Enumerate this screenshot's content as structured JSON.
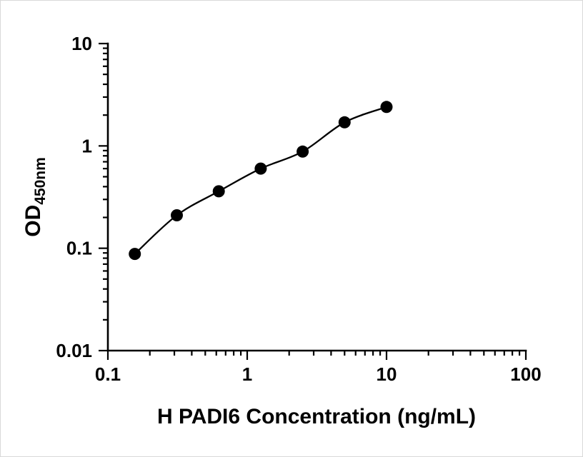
{
  "chart_data": {
    "type": "scatter",
    "title": "",
    "xlabel": "H PADI6 Concentration (ng/mL)",
    "ylabel_main": "OD",
    "ylabel_sub": "450nm",
    "x": [
      0.156,
      0.3125,
      0.625,
      1.25,
      2.5,
      5,
      10
    ],
    "y": [
      0.088,
      0.21,
      0.36,
      0.6,
      0.88,
      1.7,
      2.4
    ],
    "fit_line": true,
    "xscale": "log",
    "yscale": "log",
    "xlim": [
      0.1,
      100
    ],
    "ylim": [
      0.01,
      10
    ],
    "x_ticks": [
      "0.1",
      "1",
      "10",
      "100"
    ],
    "y_ticks": [
      "0.01",
      "0.1",
      "1",
      "10"
    ],
    "grid": false,
    "legend": false,
    "marker_color": "#000000",
    "line_color": "#000000",
    "background_color": "#ffffff"
  }
}
